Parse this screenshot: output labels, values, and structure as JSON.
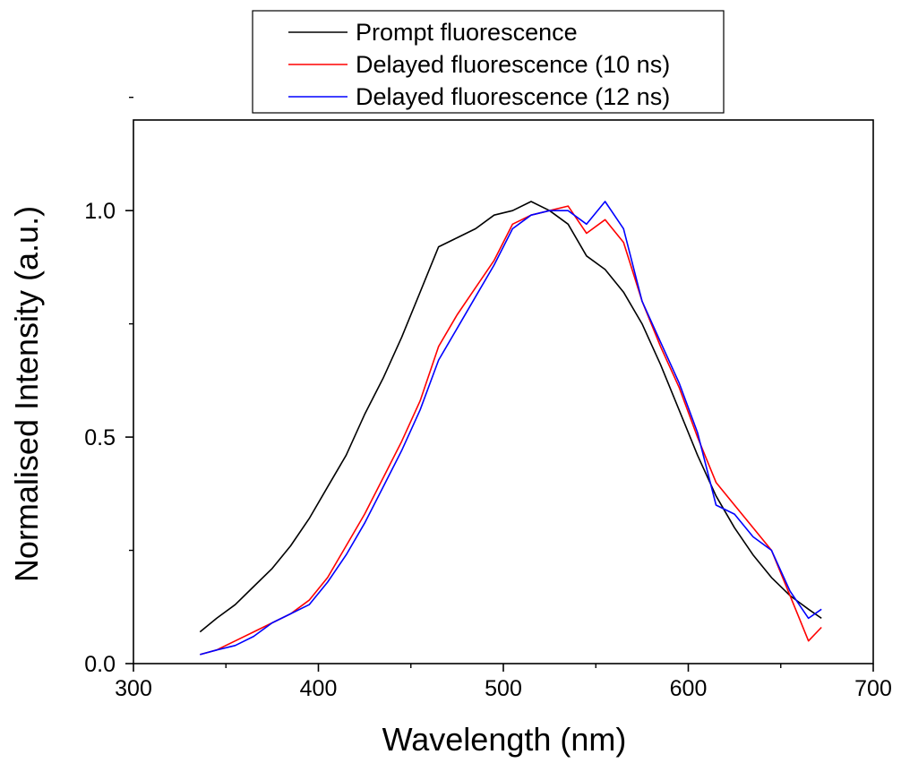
{
  "chart_data": {
    "type": "line",
    "title": "",
    "xlabel": "Wavelength (nm)",
    "ylabel": "Normalised Intensity (a.u.)",
    "xlim": [
      300,
      700
    ],
    "ylim": [
      0,
      1.2
    ],
    "x_ticks": [
      300,
      400,
      500,
      600,
      700
    ],
    "x_tick_labels": [
      "300",
      "400",
      "500",
      "600",
      "700"
    ],
    "y_ticks": [
      0.0,
      0.5,
      1.0
    ],
    "y_tick_labels": [
      "0.0",
      "0.5",
      "1.0"
    ],
    "grid": false,
    "legend_position": "top",
    "series": [
      {
        "name": "Prompt fluorescence",
        "color": "#000000",
        "x": [
          336,
          345,
          355,
          365,
          375,
          385,
          395,
          405,
          415,
          425,
          435,
          445,
          455,
          465,
          475,
          485,
          495,
          505,
          515,
          525,
          535,
          545,
          555,
          565,
          575,
          585,
          595,
          605,
          615,
          625,
          635,
          645,
          655,
          665,
          672
        ],
        "y": [
          0.07,
          0.1,
          0.13,
          0.17,
          0.21,
          0.26,
          0.32,
          0.39,
          0.46,
          0.55,
          0.63,
          0.72,
          0.82,
          0.92,
          0.94,
          0.96,
          0.99,
          1.0,
          1.02,
          1.0,
          0.97,
          0.9,
          0.87,
          0.82,
          0.75,
          0.66,
          0.56,
          0.46,
          0.37,
          0.3,
          0.24,
          0.19,
          0.15,
          0.12,
          0.1
        ]
      },
      {
        "name": "Delayed fluorescence (10 ns)",
        "color": "#ff0000",
        "x": [
          336,
          345,
          355,
          365,
          375,
          385,
          395,
          405,
          415,
          425,
          435,
          445,
          455,
          465,
          475,
          485,
          495,
          505,
          515,
          525,
          535,
          545,
          555,
          565,
          575,
          585,
          595,
          605,
          615,
          625,
          635,
          645,
          655,
          665,
          672
        ],
        "y": [
          0.02,
          0.03,
          0.05,
          0.07,
          0.09,
          0.11,
          0.14,
          0.19,
          0.26,
          0.33,
          0.41,
          0.49,
          0.58,
          0.7,
          0.77,
          0.83,
          0.89,
          0.97,
          0.99,
          1.0,
          1.01,
          0.95,
          0.98,
          0.93,
          0.8,
          0.7,
          0.61,
          0.5,
          0.4,
          0.35,
          0.3,
          0.25,
          0.15,
          0.05,
          0.08
        ]
      },
      {
        "name": "Delayed fluorescence (12 ns)",
        "color": "#0000ff",
        "x": [
          336,
          345,
          355,
          365,
          375,
          385,
          395,
          405,
          415,
          425,
          435,
          445,
          455,
          465,
          475,
          485,
          495,
          505,
          515,
          525,
          535,
          545,
          555,
          565,
          575,
          585,
          595,
          605,
          615,
          625,
          635,
          645,
          655,
          665,
          672
        ],
        "y": [
          0.02,
          0.03,
          0.04,
          0.06,
          0.09,
          0.11,
          0.13,
          0.18,
          0.24,
          0.31,
          0.39,
          0.47,
          0.56,
          0.67,
          0.74,
          0.81,
          0.88,
          0.96,
          0.99,
          1.0,
          1.0,
          0.97,
          1.02,
          0.96,
          0.8,
          0.71,
          0.62,
          0.51,
          0.35,
          0.33,
          0.28,
          0.25,
          0.16,
          0.1,
          0.12
        ]
      }
    ]
  }
}
